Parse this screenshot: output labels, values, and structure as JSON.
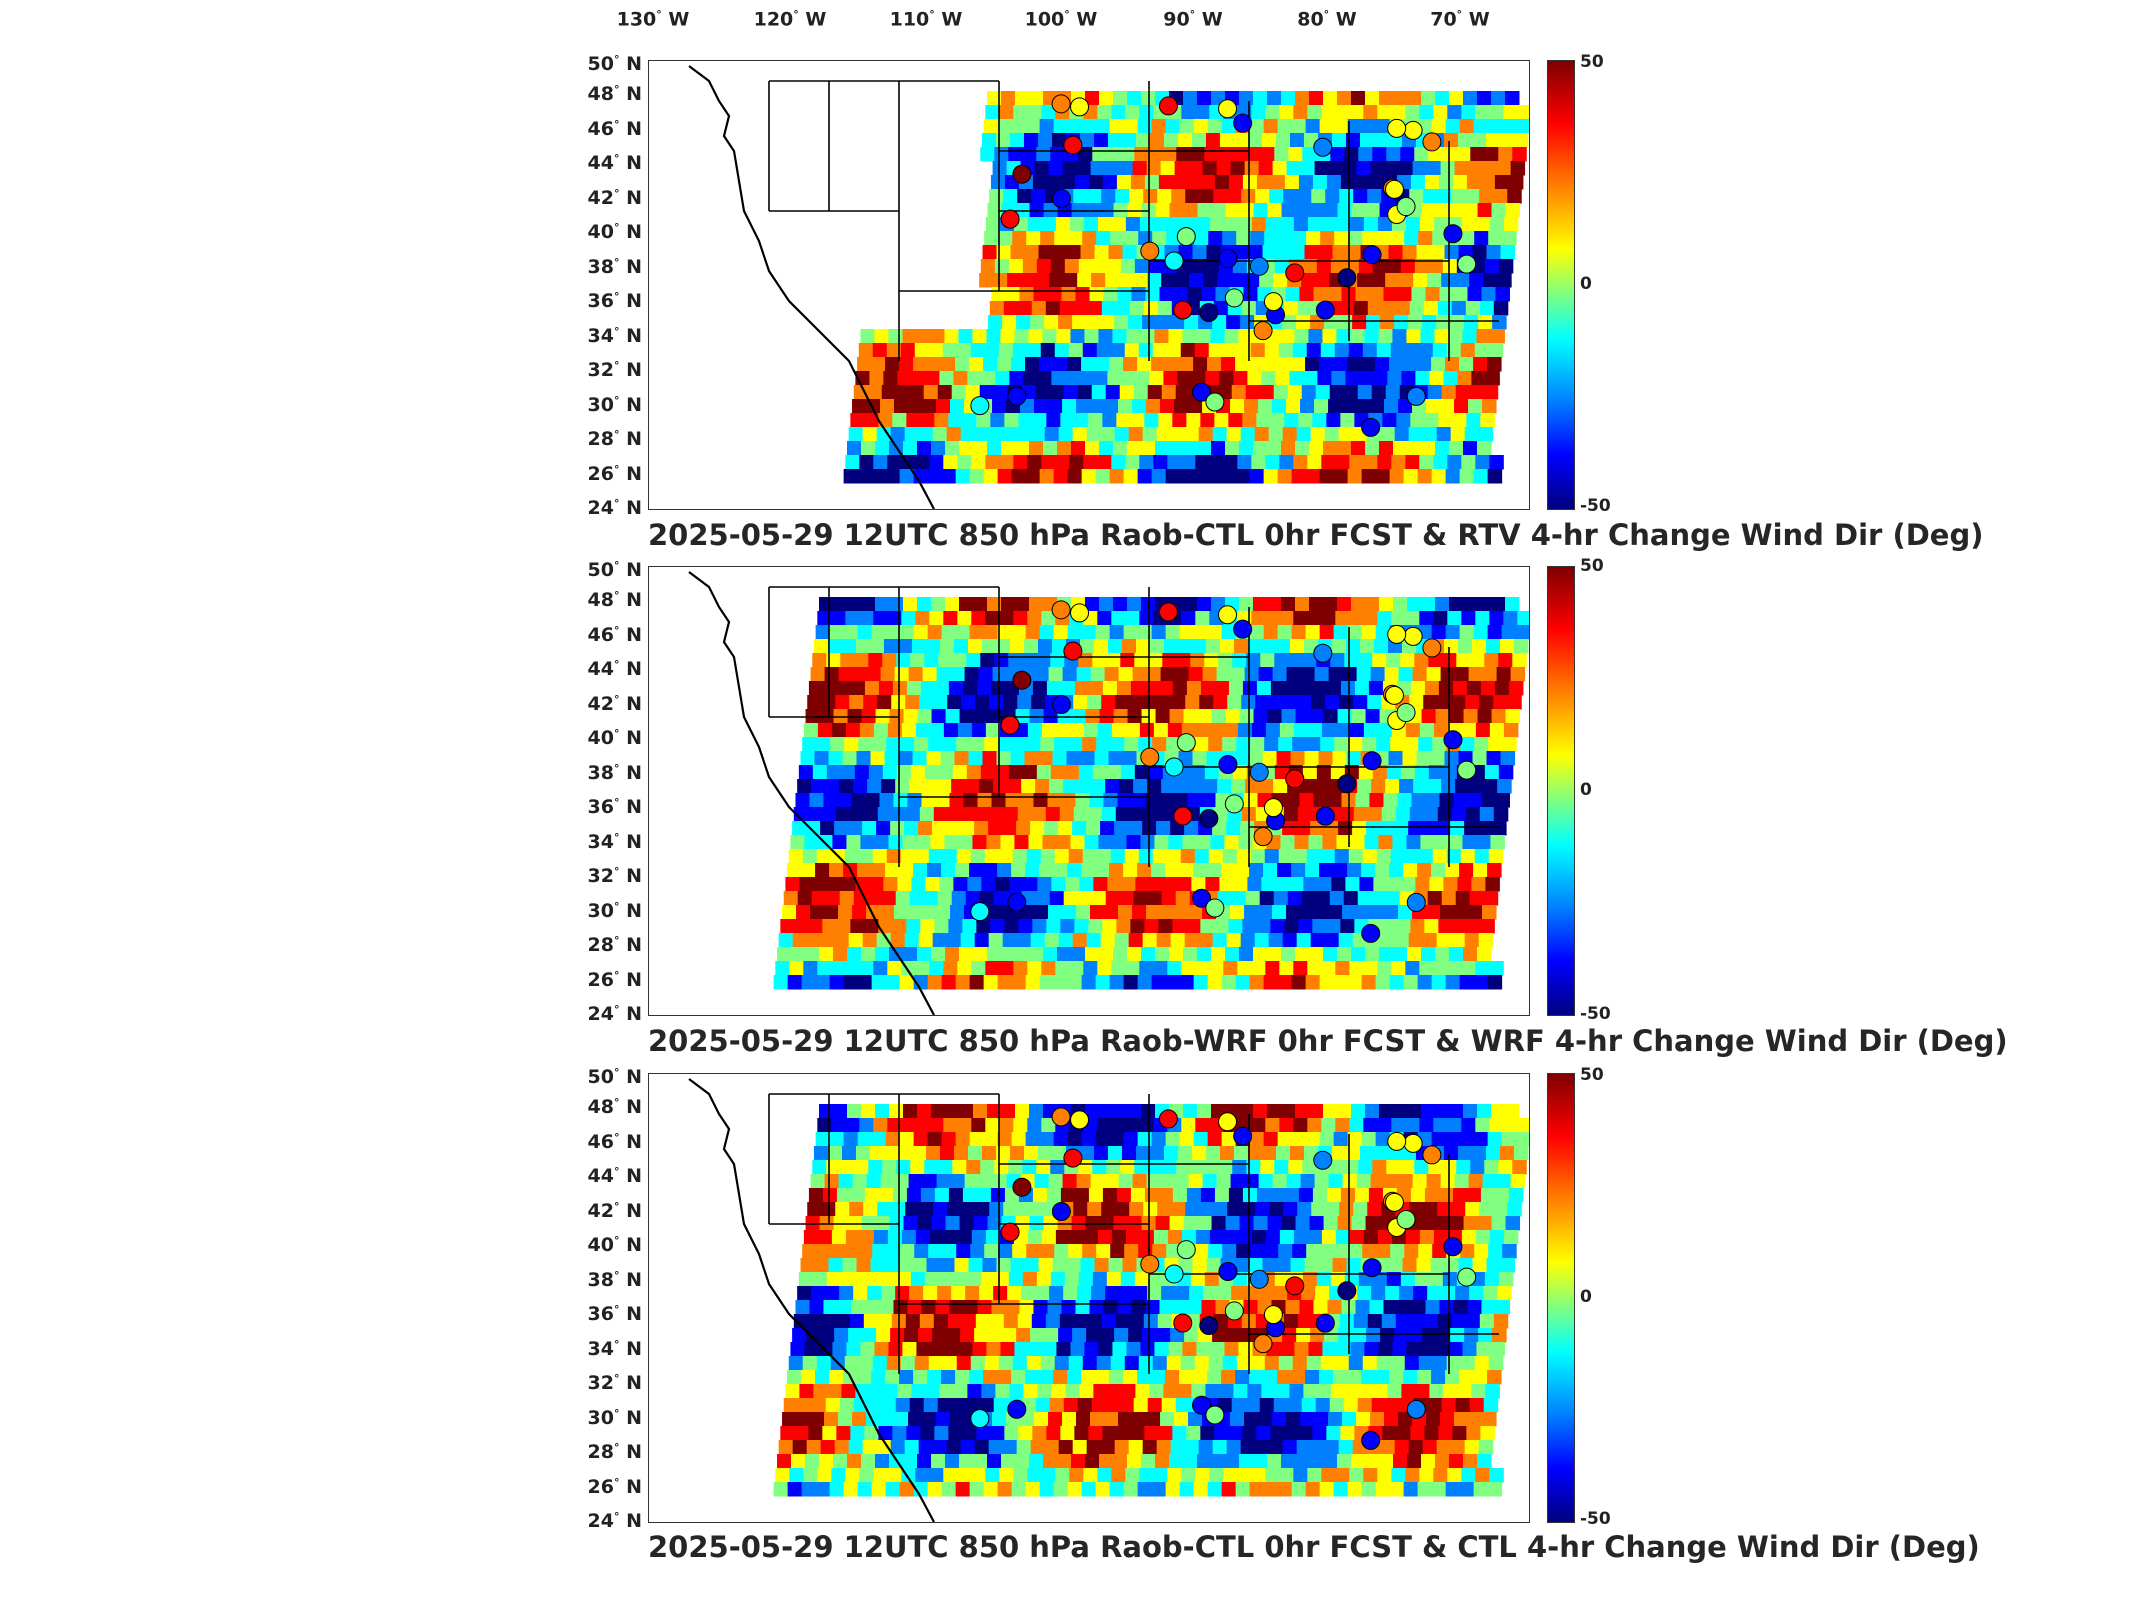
{
  "longitude_labels": [
    {
      "deg": "130",
      "hem": "W"
    },
    {
      "deg": "120",
      "hem": "W"
    },
    {
      "deg": "110",
      "hem": "W"
    },
    {
      "deg": "100",
      "hem": "W"
    },
    {
      "deg": "90",
      "hem": "W"
    },
    {
      "deg": "80",
      "hem": "W"
    },
    {
      "deg": "70",
      "hem": "W"
    }
  ],
  "latitude_labels": [
    {
      "deg": "50",
      "hem": "N"
    },
    {
      "deg": "48",
      "hem": "N"
    },
    {
      "deg": "46",
      "hem": "N"
    },
    {
      "deg": "44",
      "hem": "N"
    },
    {
      "deg": "42",
      "hem": "N"
    },
    {
      "deg": "40",
      "hem": "N"
    },
    {
      "deg": "38",
      "hem": "N"
    },
    {
      "deg": "36",
      "hem": "N"
    },
    {
      "deg": "34",
      "hem": "N"
    },
    {
      "deg": "32",
      "hem": "N"
    },
    {
      "deg": "30",
      "hem": "N"
    },
    {
      "deg": "28",
      "hem": "N"
    },
    {
      "deg": "26",
      "hem": "N"
    },
    {
      "deg": "24",
      "hem": "N"
    }
  ],
  "colorbar": {
    "max_label": "50",
    "mid_label": "0",
    "min_label": "-50",
    "colors": [
      "#7f0000",
      "#ff0000",
      "#ff8000",
      "#ffff00",
      "#80ff80",
      "#00ffff",
      "#0080ff",
      "#0000ff",
      "#00007f"
    ]
  },
  "panels": [
    {
      "title": "2025-05-29 12UTC 850 hPa Raob-CTL 0hr FCST & RTV 4-hr Change Wind Dir (Deg)"
    },
    {
      "title": "2025-05-29 12UTC 850 hPa Raob-WRF 0hr FCST & WRF 4-hr Change Wind Dir (Deg)"
    },
    {
      "title": "2025-05-29 12UTC 850 hPa Raob-CTL 0hr FCST & CTL 4-hr Change Wind Dir (Deg)"
    }
  ]
}
